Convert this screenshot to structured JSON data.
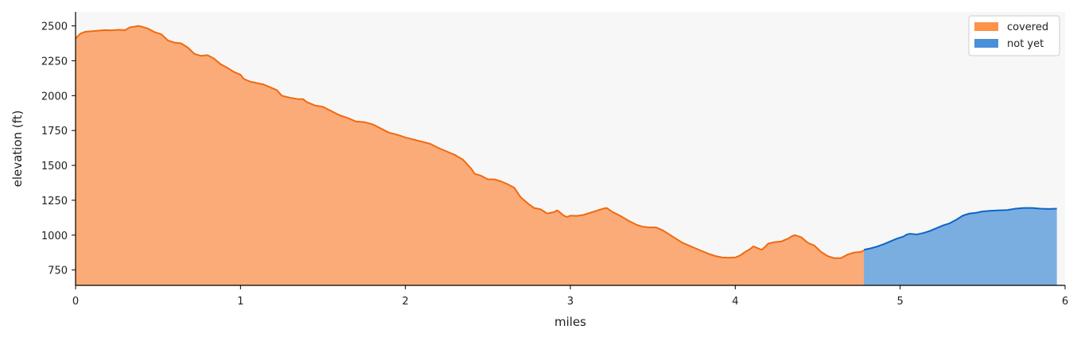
{
  "chart_data": {
    "type": "area",
    "title": "",
    "xlabel": "miles",
    "ylabel": "elevation (ft)",
    "xlim": [
      0,
      6
    ],
    "ylim": [
      640,
      2600
    ],
    "x_ticks": [
      0,
      1,
      2,
      3,
      4,
      5,
      6
    ],
    "y_ticks": [
      750,
      1000,
      1250,
      1500,
      1750,
      2000,
      2250,
      2500
    ],
    "grid": false,
    "plot_background": "#f7f7f7",
    "legend_position": "top-right",
    "series": [
      {
        "name": "covered",
        "line_color": "#f06a10",
        "fill_color": "#fbab78",
        "legend_color": "#fd9248",
        "points": [
          [
            0.0,
            2410
          ],
          [
            0.03,
            2445
          ],
          [
            0.06,
            2458
          ],
          [
            0.1,
            2462
          ],
          [
            0.14,
            2466
          ],
          [
            0.18,
            2470
          ],
          [
            0.22,
            2468
          ],
          [
            0.26,
            2472
          ],
          [
            0.3,
            2470
          ],
          [
            0.33,
            2490
          ],
          [
            0.36,
            2495
          ],
          [
            0.38,
            2500
          ],
          [
            0.4,
            2495
          ],
          [
            0.44,
            2480
          ],
          [
            0.48,
            2455
          ],
          [
            0.52,
            2440
          ],
          [
            0.56,
            2395
          ],
          [
            0.6,
            2380
          ],
          [
            0.64,
            2375
          ],
          [
            0.68,
            2345
          ],
          [
            0.72,
            2300
          ],
          [
            0.76,
            2285
          ],
          [
            0.8,
            2290
          ],
          [
            0.84,
            2265
          ],
          [
            0.88,
            2225
          ],
          [
            0.92,
            2200
          ],
          [
            0.96,
            2170
          ],
          [
            1.0,
            2150
          ],
          [
            1.02,
            2120
          ],
          [
            1.06,
            2100
          ],
          [
            1.1,
            2090
          ],
          [
            1.14,
            2080
          ],
          [
            1.18,
            2060
          ],
          [
            1.22,
            2040
          ],
          [
            1.25,
            2000
          ],
          [
            1.3,
            1985
          ],
          [
            1.35,
            1975
          ],
          [
            1.38,
            1975
          ],
          [
            1.4,
            1955
          ],
          [
            1.45,
            1930
          ],
          [
            1.5,
            1920
          ],
          [
            1.55,
            1890
          ],
          [
            1.6,
            1860
          ],
          [
            1.65,
            1840
          ],
          [
            1.7,
            1815
          ],
          [
            1.75,
            1810
          ],
          [
            1.8,
            1795
          ],
          [
            1.85,
            1765
          ],
          [
            1.9,
            1735
          ],
          [
            1.95,
            1720
          ],
          [
            2.0,
            1700
          ],
          [
            2.05,
            1685
          ],
          [
            2.1,
            1670
          ],
          [
            2.15,
            1655
          ],
          [
            2.2,
            1625
          ],
          [
            2.25,
            1600
          ],
          [
            2.3,
            1575
          ],
          [
            2.35,
            1540
          ],
          [
            2.4,
            1475
          ],
          [
            2.42,
            1440
          ],
          [
            2.46,
            1425
          ],
          [
            2.5,
            1400
          ],
          [
            2.54,
            1400
          ],
          [
            2.58,
            1385
          ],
          [
            2.62,
            1365
          ],
          [
            2.66,
            1340
          ],
          [
            2.7,
            1270
          ],
          [
            2.75,
            1220
          ],
          [
            2.78,
            1195
          ],
          [
            2.82,
            1185
          ],
          [
            2.86,
            1155
          ],
          [
            2.9,
            1165
          ],
          [
            2.92,
            1178
          ],
          [
            2.94,
            1160
          ],
          [
            2.96,
            1140
          ],
          [
            2.98,
            1130
          ],
          [
            3.0,
            1140
          ],
          [
            3.04,
            1138
          ],
          [
            3.08,
            1145
          ],
          [
            3.12,
            1160
          ],
          [
            3.16,
            1175
          ],
          [
            3.2,
            1190
          ],
          [
            3.22,
            1195
          ],
          [
            3.25,
            1170
          ],
          [
            3.3,
            1140
          ],
          [
            3.35,
            1105
          ],
          [
            3.4,
            1075
          ],
          [
            3.44,
            1060
          ],
          [
            3.48,
            1055
          ],
          [
            3.52,
            1055
          ],
          [
            3.56,
            1035
          ],
          [
            3.6,
            1005
          ],
          [
            3.64,
            975
          ],
          [
            3.68,
            945
          ],
          [
            3.72,
            925
          ],
          [
            3.76,
            905
          ],
          [
            3.8,
            885
          ],
          [
            3.84,
            865
          ],
          [
            3.88,
            850
          ],
          [
            3.92,
            840
          ],
          [
            3.96,
            838
          ],
          [
            4.0,
            840
          ],
          [
            4.03,
            855
          ],
          [
            4.06,
            880
          ],
          [
            4.09,
            900
          ],
          [
            4.11,
            920
          ],
          [
            4.13,
            910
          ],
          [
            4.16,
            895
          ],
          [
            4.18,
            915
          ],
          [
            4.2,
            940
          ],
          [
            4.24,
            950
          ],
          [
            4.28,
            955
          ],
          [
            4.32,
            975
          ],
          [
            4.34,
            990
          ],
          [
            4.36,
            1000
          ],
          [
            4.4,
            985
          ],
          [
            4.44,
            945
          ],
          [
            4.48,
            925
          ],
          [
            4.52,
            880
          ],
          [
            4.56,
            850
          ],
          [
            4.6,
            835
          ],
          [
            4.64,
            835
          ],
          [
            4.68,
            860
          ],
          [
            4.72,
            875
          ],
          [
            4.76,
            880
          ],
          [
            4.78,
            890
          ]
        ]
      },
      {
        "name": "not yet",
        "line_color": "#0f64c8",
        "fill_color": "#7aaee0",
        "legend_color": "#4a8fd8",
        "points": [
          [
            4.78,
            895
          ],
          [
            4.82,
            905
          ],
          [
            4.86,
            918
          ],
          [
            4.9,
            935
          ],
          [
            4.92,
            945
          ],
          [
            4.95,
            960
          ],
          [
            4.98,
            975
          ],
          [
            5.02,
            990
          ],
          [
            5.04,
            1005
          ],
          [
            5.06,
            1010
          ],
          [
            5.1,
            1005
          ],
          [
            5.14,
            1015
          ],
          [
            5.18,
            1030
          ],
          [
            5.22,
            1050
          ],
          [
            5.26,
            1070
          ],
          [
            5.3,
            1085
          ],
          [
            5.34,
            1110
          ],
          [
            5.38,
            1140
          ],
          [
            5.42,
            1155
          ],
          [
            5.46,
            1160
          ],
          [
            5.5,
            1170
          ],
          [
            5.55,
            1175
          ],
          [
            5.6,
            1178
          ],
          [
            5.65,
            1180
          ],
          [
            5.7,
            1190
          ],
          [
            5.75,
            1195
          ],
          [
            5.8,
            1195
          ],
          [
            5.85,
            1190
          ],
          [
            5.9,
            1188
          ],
          [
            5.95,
            1190
          ]
        ]
      }
    ]
  }
}
